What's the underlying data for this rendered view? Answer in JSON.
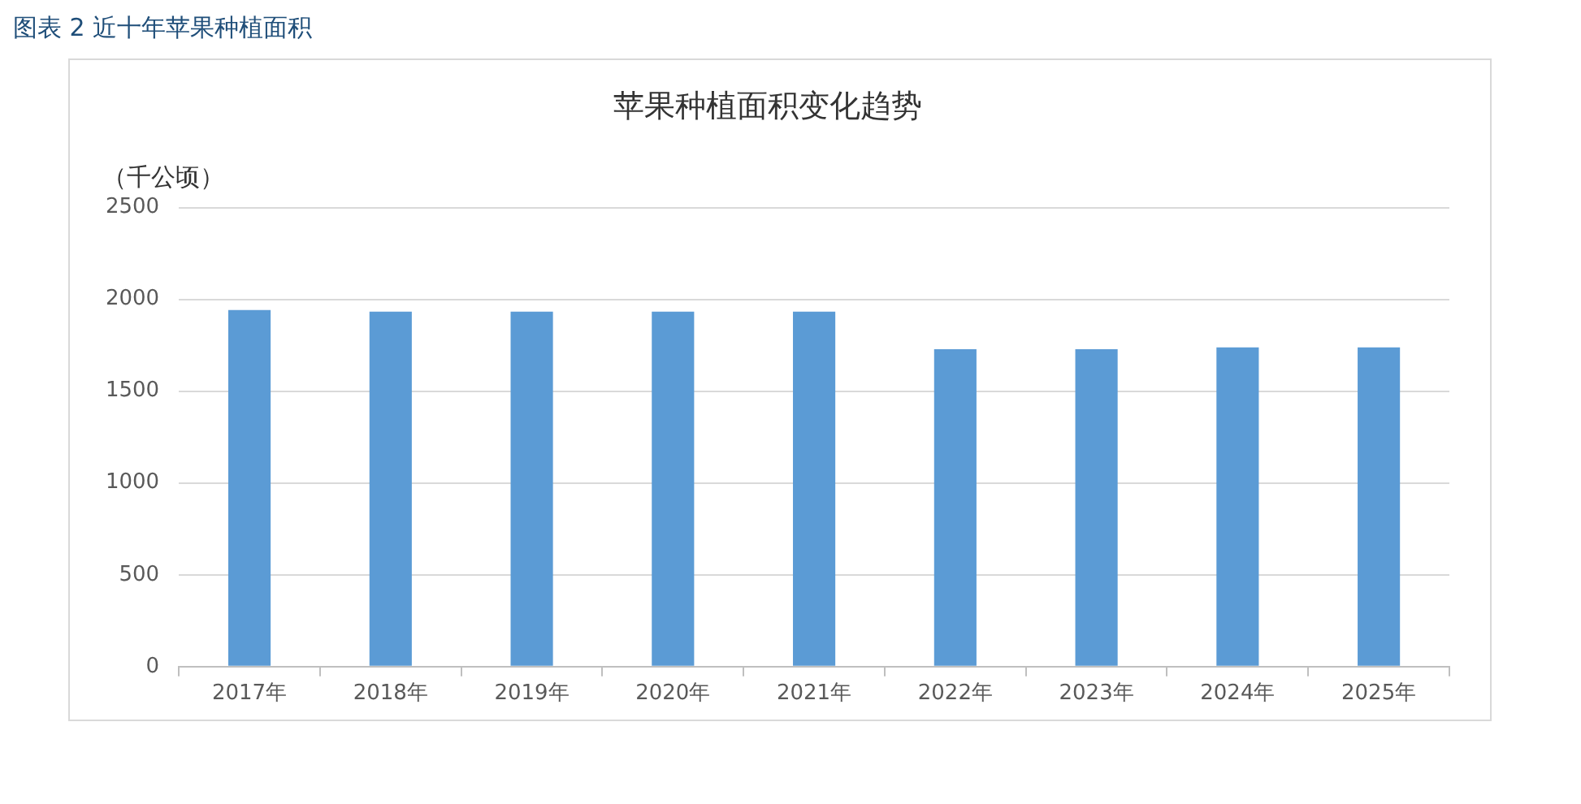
{
  "chart_data": {
    "type": "bar",
    "subtitle": "图表 2  近十年苹果种植面积",
    "title": "苹果种植面积变化趋势",
    "ylabel": "（千公顷）",
    "categories": [
      "2017年",
      "2018年",
      "2019年",
      "2020年",
      "2021年",
      "2022年",
      "2023年",
      "2024年",
      "2025年"
    ],
    "values": [
      1942,
      1933,
      1933,
      1933,
      1933,
      1729,
      1729,
      1738,
      1738
    ],
    "color": "#5b9bd5",
    "ylim": [
      0,
      2500
    ],
    "yticks": [
      0,
      500,
      1000,
      1500,
      2000,
      2500
    ],
    "grid": "y"
  }
}
